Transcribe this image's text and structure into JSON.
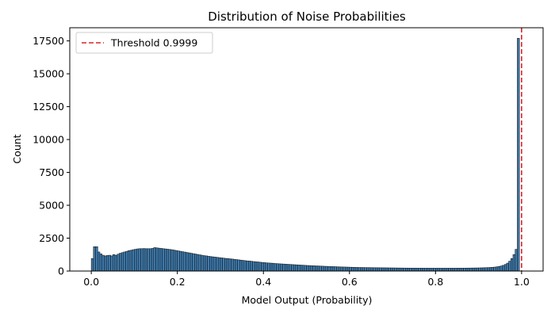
{
  "chart_data": {
    "type": "bar",
    "title": "Distribution of Noise Probabilities",
    "xlabel": "Model Output (Probability)",
    "ylabel": "Count",
    "xlim": [
      -0.05,
      1.05
    ],
    "ylim": [
      0,
      18500
    ],
    "xticks": [
      0.0,
      0.2,
      0.4,
      0.6,
      0.8,
      1.0
    ],
    "xtick_labels": [
      "0.0",
      "0.2",
      "0.4",
      "0.6",
      "0.8",
      "1.0"
    ],
    "yticks": [
      0,
      2500,
      5000,
      7500,
      10000,
      12500,
      15000,
      17500
    ],
    "ytick_labels": [
      "0",
      "2500",
      "5000",
      "7500",
      "10000",
      "12500",
      "15000",
      "17500"
    ],
    "bin_width": 0.005,
    "bin_start": 0.0,
    "bar_color": "#3c7bb0",
    "bar_edge_color": "#1a1a1a",
    "threshold": {
      "value": 0.9999,
      "label": "Threshold 0.9999",
      "color": "#d62728",
      "style": "dashed"
    },
    "legend_position": "top-left",
    "values": [
      950,
      1850,
      1850,
      1450,
      1300,
      1200,
      1150,
      1180,
      1200,
      1150,
      1250,
      1200,
      1280,
      1350,
      1400,
      1450,
      1500,
      1550,
      1580,
      1620,
      1650,
      1680,
      1700,
      1700,
      1710,
      1700,
      1700,
      1700,
      1720,
      1780,
      1760,
      1740,
      1720,
      1700,
      1680,
      1660,
      1640,
      1620,
      1590,
      1560,
      1530,
      1500,
      1470,
      1440,
      1410,
      1380,
      1350,
      1320,
      1290,
      1260,
      1230,
      1200,
      1170,
      1150,
      1120,
      1100,
      1080,
      1060,
      1040,
      1020,
      1000,
      980,
      960,
      950,
      930,
      910,
      890,
      870,
      850,
      830,
      810,
      790,
      770,
      760,
      740,
      720,
      700,
      690,
      670,
      650,
      640,
      620,
      610,
      600,
      590,
      570,
      560,
      550,
      540,
      530,
      520,
      510,
      500,
      490,
      480,
      470,
      460,
      450,
      440,
      430,
      420,
      415,
      405,
      400,
      390,
      385,
      375,
      370,
      360,
      355,
      345,
      340,
      335,
      330,
      320,
      315,
      310,
      305,
      300,
      295,
      290,
      285,
      280,
      275,
      270,
      268,
      265,
      262,
      260,
      258,
      256,
      254,
      252,
      250,
      248,
      246,
      244,
      242,
      240,
      238,
      236,
      234,
      232,
      230,
      228,
      226,
      225,
      224,
      223,
      222,
      221,
      220,
      219,
      218,
      218,
      217,
      217,
      216,
      216,
      216,
      215,
      215,
      215,
      215,
      215,
      216,
      216,
      217,
      217,
      218,
      219,
      220,
      221,
      222,
      224,
      226,
      228,
      230,
      233,
      236,
      240,
      245,
      250,
      256,
      263,
      272,
      283,
      298,
      318,
      345,
      380,
      430,
      500,
      600,
      750,
      950,
      1250,
      1650,
      17700
    ]
  }
}
